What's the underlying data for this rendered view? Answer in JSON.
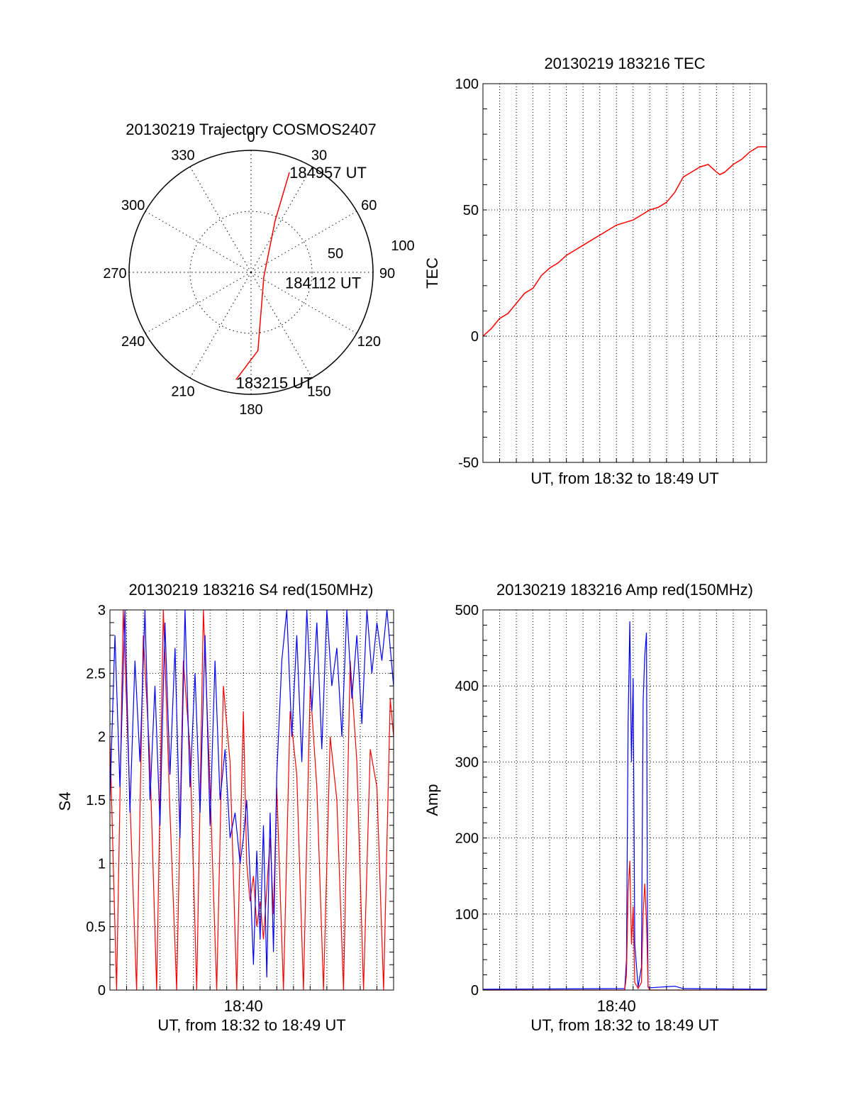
{
  "chart_data": [
    {
      "type": "polar",
      "title": "20130219 Trajectory COSMOS2407",
      "azimuth_labels": [
        "0",
        "30",
        "60",
        "90",
        "120",
        "150",
        "180",
        "210",
        "240",
        "270",
        "300",
        "330"
      ],
      "radial_labels": [
        "50",
        "100"
      ],
      "grid": true,
      "colors": {
        "trajectory": "#ff0000"
      },
      "trajectory": {
        "points": [
          {
            "azimuth": 188,
            "elevation": 10
          },
          {
            "azimuth": 175,
            "elevation": 32
          },
          {
            "azimuth": 110,
            "elevation": 80
          },
          {
            "azimuth": 25,
            "elevation": 48
          },
          {
            "azimuth": 21,
            "elevation": 11
          }
        ],
        "annotations": [
          {
            "text": "184957 UT",
            "azimuth": 21,
            "elevation": 11
          },
          {
            "text": "184112 UT",
            "azimuth": 110,
            "elevation": 80
          },
          {
            "text": "183215 UT",
            "azimuth": 188,
            "elevation": 10
          }
        ]
      }
    },
    {
      "type": "line",
      "title": "20130219 183216 TEC",
      "xlabel": "UT, from 18:32 to 18:49 UT",
      "ylabel": "TEC",
      "ylim": [
        -50,
        100
      ],
      "xlim": [
        0,
        17
      ],
      "yticks": [
        "-50",
        "0",
        "50",
        "100"
      ],
      "grid": true,
      "colors": {
        "line": "#ff0000"
      },
      "series": [
        {
          "x": [
            0,
            0.5,
            1,
            1.5,
            2,
            2.5,
            3,
            3.5,
            4,
            4.5,
            5,
            5.5,
            6,
            6.5,
            7,
            7.5,
            8,
            8.5,
            9,
            9.5,
            10,
            10.5,
            11,
            11.5,
            11.75,
            12,
            12.5,
            13,
            13.5,
            14,
            14.2,
            14.5,
            15,
            15.5,
            16,
            16.5,
            17
          ],
          "values": [
            0,
            3,
            7,
            9,
            13,
            17,
            19,
            24,
            27,
            29,
            32,
            34,
            36,
            38,
            40,
            42,
            44,
            45,
            46,
            48,
            50,
            51,
            53,
            57,
            60,
            63,
            65,
            67,
            68,
            65,
            64,
            65,
            68,
            70,
            73,
            75,
            75
          ]
        }
      ]
    },
    {
      "type": "line",
      "title": "20130219 183216 S4 red(150MHz)",
      "xlabel": "UT, from 18:32 to 18:49 UT",
      "ylabel": "S4",
      "ylim": [
        0,
        3
      ],
      "xlim": [
        0,
        17
      ],
      "yticks": [
        "0",
        "0.5",
        "1",
        "1.5",
        "2",
        "2.5",
        "3"
      ],
      "xticks": [
        {
          "x": 8,
          "label": "18:40"
        }
      ],
      "grid": true,
      "colors": {
        "red": "#ff0000",
        "blue": "#0000ff"
      },
      "series": [
        {
          "color": "red",
          "x": [
            0,
            0.4,
            0.8,
            1.2,
            1.6,
            2,
            2.4,
            2.8,
            3.2,
            3.6,
            4,
            4.4,
            4.8,
            5.2,
            5.6,
            6,
            6.4,
            6.8,
            7.2,
            7.6,
            8,
            8.2,
            8.4,
            8.6,
            8.8,
            9,
            9.2,
            9.4,
            9.6,
            9.8,
            10,
            10.4,
            10.8,
            11.2,
            11.6,
            12,
            12.4,
            12.8,
            13.2,
            13.6,
            14,
            14.4,
            14.8,
            15.2,
            15.6,
            16,
            16.4,
            16.8,
            17
          ],
          "values": [
            2.0,
            0.0,
            3.0,
            1.5,
            0.0,
            2.8,
            1.8,
            0.0,
            3.0,
            1.4,
            0.0,
            2.6,
            1.9,
            0.0,
            3.0,
            1.6,
            0.0,
            2.4,
            1.8,
            0.0,
            2.2,
            1.0,
            0.7,
            0.9,
            0.5,
            0.7,
            0.4,
            0.8,
            1.2,
            0.6,
            1.6,
            0.0,
            2.2,
            1.7,
            0.0,
            2.4,
            1.6,
            0.0,
            2.0,
            1.5,
            0.0,
            2.6,
            1.8,
            0.0,
            1.9,
            1.6,
            0.0,
            2.3,
            2.0
          ]
        },
        {
          "color": "blue",
          "x": [
            0,
            0.3,
            0.6,
            0.9,
            1.2,
            1.5,
            1.8,
            2.1,
            2.4,
            2.7,
            3,
            3.3,
            3.6,
            3.9,
            4.2,
            4.5,
            4.8,
            5.1,
            5.4,
            5.7,
            6,
            6.3,
            6.6,
            6.9,
            7.2,
            7.5,
            7.8,
            8,
            8.2,
            8.4,
            8.6,
            8.8,
            9,
            9.2,
            9.4,
            9.6,
            9.8,
            10,
            10.3,
            10.6,
            10.9,
            11.2,
            11.5,
            11.8,
            12.1,
            12.4,
            12.7,
            13,
            13.3,
            13.6,
            13.9,
            14.2,
            14.5,
            14.8,
            15.1,
            15.4,
            15.7,
            16,
            16.3,
            16.6,
            17
          ],
          "values": [
            1.5,
            2.8,
            1.6,
            3.0,
            1.4,
            2.6,
            1.8,
            3.0,
            1.5,
            2.4,
            1.3,
            2.9,
            1.7,
            2.7,
            1.2,
            3.0,
            1.6,
            2.5,
            1.4,
            2.8,
            1.3,
            2.6,
            1.5,
            1.9,
            1.2,
            1.4,
            1.0,
            1.2,
            1.5,
            0.9,
            0.2,
            1.1,
            0.4,
            1.3,
            0.1,
            1.4,
            0.3,
            1.7,
            2.6,
            3.0,
            2.0,
            2.8,
            1.8,
            3.0,
            2.2,
            2.9,
            1.9,
            3.0,
            2.4,
            2.7,
            2.0,
            3.0,
            2.3,
            2.8,
            2.1,
            3.0,
            2.5,
            2.9,
            2.6,
            3.0,
            2.4
          ]
        }
      ]
    },
    {
      "type": "line",
      "title": "20130219 183216 Amp red(150MHz)",
      "xlabel": "UT, from 18:32 to 18:49 UT",
      "ylabel": "Amp",
      "ylim": [
        0,
        500
      ],
      "xlim": [
        0,
        17
      ],
      "yticks": [
        "0",
        "100",
        "200",
        "300",
        "400",
        "500"
      ],
      "xticks": [
        {
          "x": 8,
          "label": "18:40"
        }
      ],
      "grid": true,
      "colors": {
        "red": "#ff0000",
        "blue": "#0000ff"
      },
      "series": [
        {
          "color": "blue",
          "x": [
            0,
            8.5,
            8.6,
            8.7,
            8.8,
            8.9,
            9.0,
            9.1,
            9.3,
            9.5,
            9.6,
            9.7,
            9.8,
            9.85,
            9.9,
            10.0,
            11.5,
            12.0,
            17
          ],
          "values": [
            1,
            2,
            40,
            350,
            485,
            300,
            410,
            60,
            4,
            30,
            380,
            440,
            470,
            120,
            4,
            3,
            5,
            2,
            1
          ]
        },
        {
          "color": "red",
          "x": [
            0,
            8.5,
            8.6,
            8.7,
            8.8,
            8.9,
            9.0,
            9.1,
            9.3,
            9.5,
            9.6,
            9.7,
            9.8,
            9.9,
            10.0,
            17
          ],
          "values": [
            0,
            0,
            20,
            130,
            170,
            60,
            110,
            10,
            2,
            10,
            100,
            140,
            90,
            4,
            0,
            0
          ]
        }
      ]
    }
  ]
}
